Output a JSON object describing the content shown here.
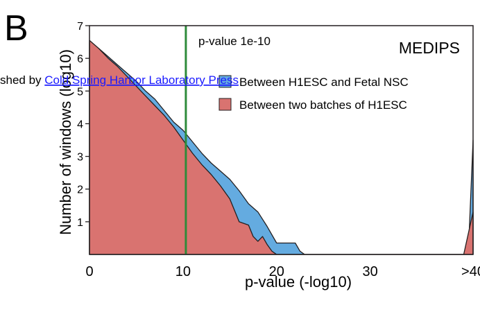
{
  "panel_label": "B",
  "watermark": {
    "prefix": "shed by ",
    "link": "Cold Spring Harbor Laboratory Press"
  },
  "colors": {
    "h1esc_vs_fetal_nsc": "#64abe0",
    "h1esc_batches": "#d97370",
    "threshold_line": "#2e8b3a",
    "axis": "#231f20",
    "watermark_link": "#1a1aff"
  },
  "chart_data": {
    "type": "area",
    "title": "MEDIPS",
    "xlabel": "p-value (-log10)",
    "ylabel": "Number of windows (log10)",
    "xlim": [
      0,
      41
    ],
    "ylim": [
      0,
      7
    ],
    "xticks": [
      {
        "value": 0,
        "label": "0"
      },
      {
        "value": 10,
        "label": "10"
      },
      {
        "value": 20,
        "label": "20"
      },
      {
        "value": 30,
        "label": "30"
      },
      {
        "value": 41,
        "label": ">40"
      }
    ],
    "yticks": [
      1,
      2,
      3,
      4,
      5,
      6,
      7
    ],
    "grid": false,
    "legend_position": "top-right",
    "annotation": {
      "x": 10.3,
      "label": "p-value 1e-10"
    },
    "series": [
      {
        "name": "Between H1ESC and Fetal NSC",
        "color": "#64abe0",
        "x": [
          0,
          1,
          2,
          3,
          4,
          5,
          6,
          7,
          8,
          9,
          10,
          11,
          12,
          13,
          14,
          15,
          16,
          17,
          18,
          19,
          20,
          21,
          22,
          22.5,
          23,
          40,
          40.5,
          41
        ],
        "y": [
          6.5,
          6.3,
          6.05,
          5.8,
          5.55,
          5.3,
          5.0,
          4.75,
          4.4,
          4.05,
          3.8,
          3.45,
          3.1,
          2.8,
          2.55,
          2.3,
          1.95,
          1.55,
          1.3,
          0.85,
          0.35,
          0.35,
          0.35,
          0.1,
          0,
          0,
          0.1,
          3.5
        ]
      },
      {
        "name": "Between two batches of H1ESC",
        "color": "#d97370",
        "x": [
          0,
          1,
          2,
          3,
          4,
          5,
          6,
          7,
          8,
          9,
          10,
          11,
          12,
          13,
          14,
          15,
          16,
          17,
          17.5,
          18,
          18.5,
          19,
          19.5,
          20,
          40,
          41
        ],
        "y": [
          6.55,
          6.3,
          6.0,
          5.75,
          5.45,
          5.15,
          4.85,
          4.55,
          4.25,
          3.9,
          3.5,
          3.1,
          2.75,
          2.45,
          2.1,
          1.7,
          1.0,
          0.9,
          0.55,
          0.4,
          0.55,
          0.3,
          0.1,
          0,
          0,
          1.3
        ]
      }
    ]
  }
}
